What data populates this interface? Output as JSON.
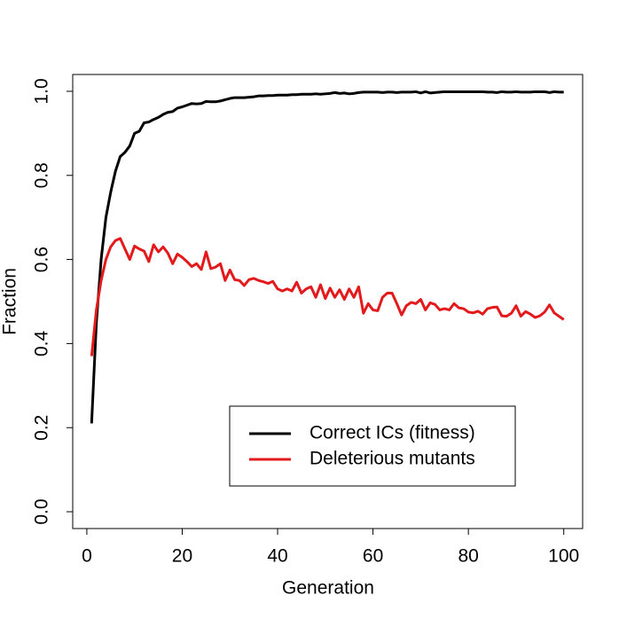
{
  "chart_data": {
    "type": "line",
    "xlabel": "Generation",
    "ylabel": "Fraction",
    "x": [
      1,
      2,
      3,
      4,
      5,
      6,
      7,
      8,
      9,
      10,
      11,
      12,
      13,
      14,
      15,
      16,
      17,
      18,
      19,
      20,
      21,
      22,
      23,
      24,
      25,
      26,
      27,
      28,
      29,
      30,
      31,
      32,
      33,
      34,
      35,
      36,
      37,
      38,
      39,
      40,
      41,
      42,
      43,
      44,
      45,
      46,
      47,
      48,
      49,
      50,
      51,
      52,
      53,
      54,
      55,
      56,
      57,
      58,
      59,
      60,
      61,
      62,
      63,
      64,
      65,
      66,
      67,
      68,
      69,
      70,
      71,
      72,
      73,
      74,
      75,
      76,
      77,
      78,
      79,
      80,
      81,
      82,
      83,
      84,
      85,
      86,
      87,
      88,
      89,
      90,
      91,
      92,
      93,
      94,
      95,
      96,
      97,
      98,
      99,
      100
    ],
    "series": [
      {
        "name": "Correct ICs (fitness)",
        "color": "#000000",
        "values": [
          0.21,
          0.45,
          0.6,
          0.7,
          0.76,
          0.81,
          0.845,
          0.855,
          0.87,
          0.9,
          0.905,
          0.925,
          0.927,
          0.933,
          0.938,
          0.945,
          0.95,
          0.952,
          0.96,
          0.963,
          0.967,
          0.971,
          0.97,
          0.971,
          0.976,
          0.975,
          0.975,
          0.977,
          0.98,
          0.983,
          0.985,
          0.985,
          0.985,
          0.986,
          0.987,
          0.989,
          0.989,
          0.99,
          0.99,
          0.991,
          0.991,
          0.991,
          0.992,
          0.992,
          0.993,
          0.993,
          0.993,
          0.994,
          0.993,
          0.994,
          0.995,
          0.997,
          0.995,
          0.996,
          0.994,
          0.995,
          0.997,
          0.998,
          0.998,
          0.998,
          0.998,
          0.997,
          0.998,
          0.998,
          0.997,
          0.998,
          0.998,
          0.998,
          0.999,
          0.996,
          0.999,
          0.996,
          0.997,
          0.998,
          0.999,
          0.999,
          0.999,
          0.999,
          0.999,
          0.999,
          0.999,
          0.999,
          0.999,
          0.998,
          0.998,
          0.997,
          0.999,
          0.998,
          0.998,
          0.999,
          0.998,
          0.998,
          0.998,
          0.999,
          0.999,
          0.999,
          0.997,
          0.999,
          0.998,
          0.998
        ]
      },
      {
        "name": "Deleterious mutants",
        "color": "#e31a1c",
        "values": [
          0.37,
          0.48,
          0.55,
          0.6,
          0.63,
          0.645,
          0.65,
          0.625,
          0.6,
          0.632,
          0.625,
          0.62,
          0.595,
          0.635,
          0.618,
          0.63,
          0.615,
          0.59,
          0.613,
          0.605,
          0.595,
          0.583,
          0.59,
          0.576,
          0.618,
          0.578,
          0.582,
          0.59,
          0.55,
          0.575,
          0.552,
          0.55,
          0.538,
          0.552,
          0.555,
          0.55,
          0.547,
          0.543,
          0.548,
          0.53,
          0.525,
          0.53,
          0.525,
          0.546,
          0.52,
          0.53,
          0.535,
          0.51,
          0.54,
          0.507,
          0.532,
          0.51,
          0.528,
          0.505,
          0.53,
          0.51,
          0.535,
          0.472,
          0.495,
          0.48,
          0.478,
          0.51,
          0.52,
          0.52,
          0.495,
          0.468,
          0.49,
          0.498,
          0.495,
          0.505,
          0.48,
          0.497,
          0.493,
          0.48,
          0.483,
          0.48,
          0.495,
          0.485,
          0.483,
          0.475,
          0.473,
          0.477,
          0.47,
          0.483,
          0.486,
          0.487,
          0.466,
          0.465,
          0.472,
          0.49,
          0.465,
          0.476,
          0.47,
          0.462,
          0.466,
          0.475,
          0.492,
          0.473,
          0.465,
          0.457
        ]
      }
    ],
    "xlim": [
      -2.96,
      103.96
    ],
    "xticks": [
      0,
      20,
      40,
      60,
      80,
      100
    ],
    "ylim": [
      -0.04,
      1.04
    ],
    "yticks": [
      {
        "value": 0,
        "label": "0.0"
      },
      {
        "value": 0.2,
        "label": "0.2"
      },
      {
        "value": 0.4,
        "label": "0.4"
      },
      {
        "value": 0.6,
        "label": "0.6"
      },
      {
        "value": 0.8,
        "label": "0.8"
      },
      {
        "value": 1,
        "label": "1.0"
      }
    ],
    "legend": "bottom-right"
  }
}
